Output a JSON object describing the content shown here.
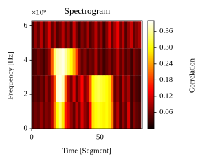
{
  "chart_data": {
    "type": "heatmap",
    "title": "Spectrogram",
    "x_label": "Time [Segment]",
    "y_label": "Frequency [Hz]",
    "y_offset_text": "×10⁹",
    "colormap": "hot",
    "x_edges": [
      0,
      2,
      4,
      6,
      8,
      10,
      12,
      14,
      16,
      18,
      20,
      22,
      24,
      26,
      28,
      30,
      32,
      34,
      36,
      38,
      40,
      42,
      44,
      46,
      48,
      50,
      52,
      54,
      56,
      58,
      60,
      62,
      64,
      66,
      68,
      70,
      72,
      74,
      76,
      78,
      80
    ],
    "y_edges": [
      0,
      1.5625,
      3.125,
      4.6875,
      6.25
    ],
    "values": [
      [
        0.04,
        0.06,
        0.05,
        0.08,
        0.05,
        0.07,
        0.06,
        0.1,
        0.22,
        0.3,
        0.34,
        0.28,
        0.16,
        0.12,
        0.08,
        0.05,
        0.1,
        0.06,
        0.12,
        0.08,
        0.06,
        0.15,
        0.28,
        0.3,
        0.31,
        0.3,
        0.29,
        0.3,
        0.28,
        0.22,
        0.06,
        0.1,
        0.04,
        0.08,
        0.05,
        0.12,
        0.03,
        0.07,
        0.05,
        0.04
      ],
      [
        0.03,
        0.05,
        0.04,
        0.06,
        0.04,
        0.08,
        0.05,
        0.1,
        0.2,
        0.38,
        0.39,
        0.37,
        0.2,
        0.1,
        0.06,
        0.12,
        0.05,
        0.09,
        0.14,
        0.07,
        0.1,
        0.2,
        0.3,
        0.32,
        0.33,
        0.32,
        0.31,
        0.3,
        0.28,
        0.2,
        0.05,
        0.08,
        0.04,
        0.1,
        0.06,
        0.09,
        0.03,
        0.06,
        0.04,
        0.03
      ],
      [
        0.03,
        0.04,
        0.06,
        0.05,
        0.03,
        0.05,
        0.08,
        0.2,
        0.34,
        0.37,
        0.38,
        0.39,
        0.36,
        0.33,
        0.3,
        0.25,
        0.18,
        0.08,
        0.05,
        0.07,
        0.04,
        0.06,
        0.05,
        0.09,
        0.04,
        0.06,
        0.03,
        0.05,
        0.07,
        0.04,
        0.06,
        0.1,
        0.05,
        0.08,
        0.04,
        0.06,
        0.03,
        0.07,
        0.05,
        0.04
      ],
      [
        0.03,
        0.08,
        0.05,
        0.1,
        0.04,
        0.07,
        0.12,
        0.05,
        0.09,
        0.04,
        0.06,
        0.1,
        0.05,
        0.08,
        0.04,
        0.11,
        0.06,
        0.03,
        0.07,
        0.05,
        0.09,
        0.04,
        0.06,
        0.1,
        0.05,
        0.08,
        0.03,
        0.07,
        0.12,
        0.05,
        0.09,
        0.13,
        0.06,
        0.1,
        0.04,
        0.08,
        0.11,
        0.05,
        0.07,
        0.09
      ]
    ],
    "xlim": [
      0,
      81
    ],
    "xticks": [
      0,
      50
    ],
    "ylim": [
      0,
      6.3
    ],
    "yticks": [
      0,
      2,
      4,
      6
    ],
    "colorbar": {
      "label": "Correlation",
      "lim": [
        0,
        0.4
      ],
      "ticks": [
        0.06,
        0.12,
        0.18,
        0.24,
        0.3,
        0.36
      ],
      "tick_labels": [
        "0.06",
        "0.12",
        "0.18",
        "0.24",
        "0.30",
        "0.36"
      ]
    }
  }
}
